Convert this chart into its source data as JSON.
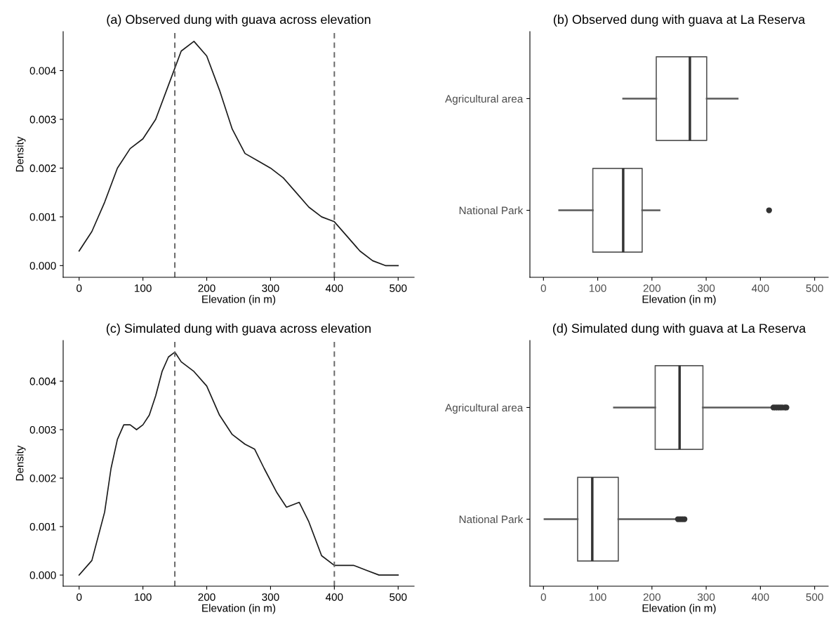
{
  "chart_data": [
    {
      "type": "line",
      "title": "(a) Observed dung with guava across elevation",
      "xlabel": "Elevation (in m)",
      "ylabel": "Density",
      "series": [
        {
          "color": "#1a1a1a",
          "x": [
            0,
            20,
            40,
            60,
            80,
            100,
            120,
            140,
            160,
            180,
            200,
            220,
            240,
            260,
            280,
            300,
            320,
            340,
            360,
            380,
            400,
            420,
            440,
            460,
            480,
            500
          ],
          "values": [
            0.0003,
            0.0007,
            0.0013,
            0.002,
            0.0024,
            0.0026,
            0.003,
            0.0037,
            0.0044,
            0.0046,
            0.0043,
            0.0036,
            0.0028,
            0.0023,
            0.00215,
            0.002,
            0.0018,
            0.0015,
            0.0012,
            0.001,
            0.0009,
            0.0006,
            0.0003,
            0.0001,
            0.0,
            0.0
          ]
        }
      ],
      "xlim": [
        -25,
        525
      ],
      "xticks": [
        0,
        100,
        200,
        300,
        400,
        500
      ],
      "ylim": [
        -0.00024,
        0.0048
      ],
      "yticks": [
        {
          "value": 0,
          "label": "0.000"
        },
        {
          "value": 0.001,
          "label": "0.001"
        },
        {
          "value": 0.002,
          "label": "0.002"
        },
        {
          "value": 0.003,
          "label": "0.003"
        },
        {
          "value": 0.004,
          "label": "0.004"
        }
      ],
      "ref_lines": [
        {
          "axis": "x",
          "value": 150,
          "color": "#666666",
          "line_style": "dashed"
        },
        {
          "axis": "x",
          "value": 400,
          "color": "#666666",
          "line_style": "dashed"
        }
      ],
      "grid": false
    },
    {
      "type": "box",
      "title": "(b) Observed dung with guava at La Reserva",
      "xlabel": "Elevation (in m)",
      "orientation": "horizontal",
      "categories": [
        "Agricultural area",
        "National Park"
      ],
      "boxes": [
        {
          "low": 147,
          "q1": 208,
          "median": 270,
          "q3": 301,
          "high": 358
        },
        {
          "low": 29,
          "q1": 91,
          "median": 147,
          "q3": 182,
          "high": 214,
          "outliers": [
            416
          ]
        }
      ],
      "color": "#595959",
      "xlim": [
        -25,
        525
      ],
      "xticks": [
        0,
        100,
        200,
        300,
        400,
        500
      ],
      "grid": false
    },
    {
      "type": "line",
      "title": "(c) Simulated dung with guava across elevation",
      "xlabel": "Elevation (in m)",
      "ylabel": "Density",
      "series": [
        {
          "color": "#1a1a1a",
          "x": [
            0,
            20,
            40,
            50,
            60,
            70,
            80,
            90,
            100,
            110,
            120,
            130,
            140,
            150,
            160,
            180,
            200,
            220,
            240,
            260,
            275,
            290,
            310,
            325,
            345,
            360,
            380,
            400,
            430,
            450,
            470,
            500
          ],
          "values": [
            0.0,
            0.0003,
            0.0013,
            0.0022,
            0.0028,
            0.0031,
            0.0031,
            0.003,
            0.0031,
            0.0033,
            0.0037,
            0.0042,
            0.0045,
            0.0046,
            0.0044,
            0.0042,
            0.0039,
            0.0033,
            0.0029,
            0.0027,
            0.0026,
            0.0022,
            0.0017,
            0.0014,
            0.0015,
            0.0011,
            0.0004,
            0.0002,
            0.0002,
            0.0001,
            0.0,
            0.0
          ]
        }
      ],
      "xlim": [
        -25,
        525
      ],
      "xticks": [
        0,
        100,
        200,
        300,
        400,
        500
      ],
      "ylim": [
        -0.00023,
        0.00484
      ],
      "yticks": [
        {
          "value": 0,
          "label": "0.000"
        },
        {
          "value": 0.001,
          "label": "0.001"
        },
        {
          "value": 0.002,
          "label": "0.002"
        },
        {
          "value": 0.003,
          "label": "0.003"
        },
        {
          "value": 0.004,
          "label": "0.004"
        }
      ],
      "ref_lines": [
        {
          "axis": "x",
          "value": 150,
          "color": "#666666",
          "line_style": "dashed"
        },
        {
          "axis": "x",
          "value": 400,
          "color": "#666666",
          "line_style": "dashed"
        }
      ],
      "grid": false
    },
    {
      "type": "box",
      "title": "(d) Simulated dung with guava at La Reserva",
      "xlabel": "Elevation (in m)",
      "orientation": "horizontal",
      "categories": [
        "Agricultural area",
        "National Park"
      ],
      "boxes": [
        {
          "low": 130,
          "q1": 206,
          "median": 251,
          "q3": 294,
          "high": 420,
          "outliers": [
            424,
            428,
            432,
            436,
            440,
            445,
            448
          ]
        },
        {
          "low": 2,
          "q1": 63,
          "median": 90,
          "q3": 138,
          "high": 246,
          "outliers": [
            248,
            252,
            256,
            260
          ]
        }
      ],
      "color": "#595959",
      "xlim": [
        -25,
        525
      ],
      "xticks": [
        0,
        100,
        200,
        300,
        400,
        500
      ],
      "grid": false
    }
  ]
}
